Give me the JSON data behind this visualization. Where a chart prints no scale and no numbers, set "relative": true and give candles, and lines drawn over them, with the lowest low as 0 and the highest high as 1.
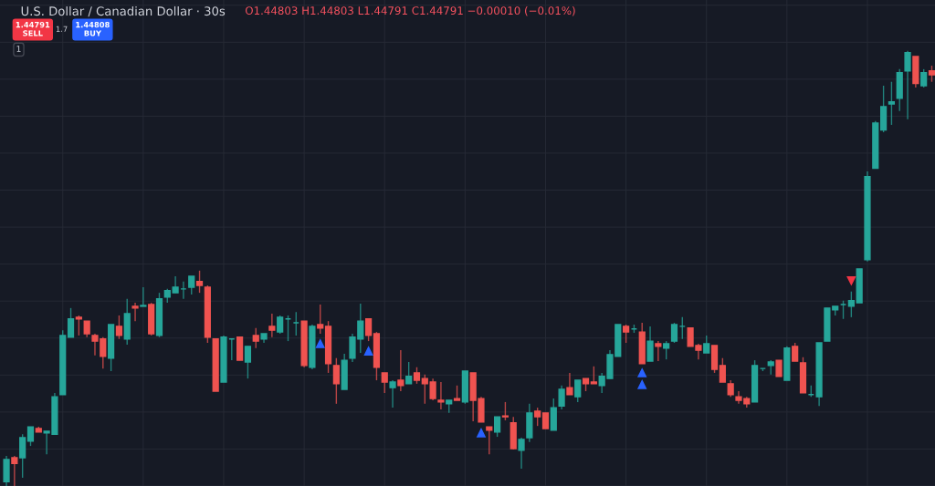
{
  "chart_data": {
    "type": "candlestick",
    "title": "U.S. Dollar / Canadian Dollar · 30s",
    "annotations": [
      "O1.44803 H1.44803 L1.44791 C1.44791 −0.00010 (−0.01%)",
      "1.44791\nSELL",
      "1.7",
      "1.44808\nBUY",
      "1"
    ],
    "relative": true,
    "grid": true,
    "categories": [
      null,
      null,
      null,
      null,
      null,
      null,
      null,
      null,
      null,
      null,
      null,
      null,
      null,
      null,
      null,
      null,
      null,
      null,
      null,
      null,
      null,
      null,
      null,
      null,
      null,
      null,
      null,
      null,
      null,
      null,
      null,
      null,
      null,
      null,
      null,
      null,
      null,
      null,
      null,
      null,
      null,
      null,
      null,
      null,
      null,
      null,
      null,
      null,
      null,
      null,
      null,
      null,
      null,
      null,
      null,
      null,
      null,
      null,
      null,
      null,
      null,
      null,
      null,
      null,
      null,
      null,
      null,
      null,
      null,
      null,
      null,
      null,
      null,
      null,
      null,
      null,
      null,
      null,
      null,
      null,
      null,
      null,
      null,
      null,
      null,
      null,
      null,
      null,
      null,
      null,
      null,
      null,
      null,
      null,
      null,
      null,
      null,
      null,
      null,
      null,
      null,
      null,
      null,
      null,
      null,
      null,
      null,
      null,
      null,
      null,
      null,
      null,
      null,
      null,
      null,
      null
    ],
    "ohlc": [
      [
        0.01,
        0.069,
        0,
        0.061
      ],
      [
        0.065,
        0.069,
        0,
        0.052
      ],
      [
        0.065,
        0.119,
        0.019,
        0.111
      ],
      [
        0.103,
        0.136,
        0.092,
        0.136
      ],
      [
        0.132,
        0.136,
        0.124,
        0.124
      ],
      [
        0.122,
        0.126,
        0.073,
        0.126
      ],
      [
        0.119,
        0.214,
        0.119,
        0.205
      ],
      [
        0.21,
        0.358,
        0.21,
        0.346
      ],
      [
        0.342,
        0.409,
        0.342,
        0.384
      ],
      [
        0.388,
        0.392,
        0.346,
        0.384
      ],
      [
        0.379,
        0.379,
        0.342,
        0.35
      ],
      [
        0.346,
        0.35,
        0.3,
        0.333
      ],
      [
        0.338,
        0.342,
        0.27,
        0.298
      ],
      [
        0.294,
        0.371,
        0.264,
        0.371
      ],
      [
        0.367,
        0.392,
        0.338,
        0.346
      ],
      [
        0.338,
        0.43,
        0.325,
        0.396
      ],
      [
        0.413,
        0.421,
        0.379,
        0.409
      ],
      [
        0.413,
        0.457,
        0.413,
        0.415
      ],
      [
        0.417,
        0.421,
        0.346,
        0.35
      ],
      [
        0.346,
        0.444,
        0.342,
        0.43
      ],
      [
        0.434,
        0.453,
        0.421,
        0.449
      ],
      [
        0.444,
        0.482,
        0.444,
        0.457
      ],
      [
        0.453,
        0.47,
        0.43,
        0.453
      ],
      [
        0.457,
        0.482,
        0.44,
        0.482
      ],
      [
        0.47,
        0.495,
        0.444,
        0.461
      ],
      [
        0.457,
        0.461,
        0.329,
        0.342
      ],
      [
        0.338,
        0.338,
        0.218,
        0.218
      ],
      [
        0.239,
        0.346,
        0.239,
        0.342
      ],
      [
        0.338,
        0.338,
        0.289,
        0.338
      ],
      [
        0.342,
        0.342,
        0.289,
        0.289
      ],
      [
        0.285,
        0.321,
        0.247,
        0.321
      ],
      [
        0.346,
        0.363,
        0.317,
        0.333
      ],
      [
        0.338,
        0.35,
        0.329,
        0.35
      ],
      [
        0.367,
        0.396,
        0.342,
        0.358
      ],
      [
        0.354,
        0.392,
        0.35,
        0.388
      ],
      [
        0.384,
        0.392,
        0.333,
        0.384
      ],
      [
        0.375,
        0.4,
        0.346,
        0.375
      ],
      [
        0.379,
        0.379,
        0.273,
        0.277
      ],
      [
        0.273,
        0.371,
        0.268,
        0.367
      ],
      [
        0.371,
        0.417,
        0.35,
        0.363
      ],
      [
        0.367,
        0.379,
        0.26,
        0.281
      ],
      [
        0.277,
        0.294,
        0.189,
        0.235
      ],
      [
        0.222,
        0.304,
        0.222,
        0.289
      ],
      [
        0.294,
        0.35,
        0.285,
        0.342
      ],
      [
        0.338,
        0.419,
        0.306,
        0.379
      ],
      [
        0.384,
        0.384,
        0.333,
        0.346
      ],
      [
        0.35,
        0.354,
        0.243,
        0.273
      ],
      [
        0.26,
        0.26,
        0.214,
        0.239
      ],
      [
        0.226,
        0.243,
        0.18,
        0.239
      ],
      [
        0.243,
        0.312,
        0.218,
        0.231
      ],
      [
        0.235,
        0.285,
        0.235,
        0.252
      ],
      [
        0.26,
        0.273,
        0.235,
        0.243
      ],
      [
        0.247,
        0.256,
        0.189,
        0.235
      ],
      [
        0.239,
        0.247,
        0.197,
        0.201
      ],
      [
        0.197,
        0.239,
        0.176,
        0.193
      ],
      [
        0.189,
        0.197,
        0.168,
        0.197
      ],
      [
        0.201,
        0.231,
        0.197,
        0.197
      ],
      [
        0.193,
        0.264,
        0.189,
        0.264
      ],
      [
        0.26,
        0.26,
        0.149,
        0.197
      ],
      [
        0.201,
        0.205,
        0.147,
        0.147
      ],
      [
        0.136,
        0.136,
        0.073,
        0.128
      ],
      [
        0.124,
        0.159,
        0.113,
        0.159
      ],
      [
        0.161,
        0.193,
        0.151,
        0.159
      ],
      [
        0.145,
        0.159,
        0.084,
        0.086
      ],
      [
        0.082,
        0.111,
        0.04,
        0.107
      ],
      [
        0.111,
        0.189,
        0.101,
        0.168
      ],
      [
        0.172,
        0.18,
        0.138,
        0.159
      ],
      [
        0.168,
        0.168,
        0.132,
        0.132
      ],
      [
        0.128,
        0.201,
        0.128,
        0.18
      ],
      [
        0.184,
        0.231,
        0.176,
        0.222
      ],
      [
        0.226,
        0.26,
        0.21,
        0.21
      ],
      [
        0.205,
        0.243,
        0.193,
        0.243
      ],
      [
        0.247,
        0.247,
        0.218,
        0.235
      ],
      [
        0.239,
        0.275,
        0.235,
        0.235
      ],
      [
        0.231,
        0.26,
        0.214,
        0.252
      ],
      [
        0.247,
        0.312,
        0.247,
        0.302
      ],
      [
        0.298,
        0.371,
        0.298,
        0.371
      ],
      [
        0.367,
        0.371,
        0.329,
        0.354
      ],
      [
        0.361,
        0.371,
        0.352,
        0.361
      ],
      [
        0.354,
        0.375,
        0.281,
        0.281
      ],
      [
        0.287,
        0.367,
        0.287,
        0.333
      ],
      [
        0.327,
        0.333,
        0.287,
        0.321
      ],
      [
        0.317,
        0.333,
        0.291,
        0.327
      ],
      [
        0.333,
        0.375,
        0.329,
        0.371
      ],
      [
        0.367,
        0.388,
        0.338,
        0.367
      ],
      [
        0.363,
        0.363,
        0.321,
        0.321
      ],
      [
        0.323,
        0.327,
        0.291,
        0.312
      ],
      [
        0.306,
        0.346,
        0.306,
        0.327
      ],
      [
        0.323,
        0.323,
        0.26,
        0.268
      ],
      [
        0.277,
        0.294,
        0.239,
        0.239
      ],
      [
        0.235,
        0.243,
        0.205,
        0.21
      ],
      [
        0.205,
        0.218,
        0.189,
        0.197
      ],
      [
        0.201,
        0.205,
        0.18,
        0.189
      ],
      [
        0.193,
        0.289,
        0.193,
        0.277
      ],
      [
        0.27,
        0.27,
        0.264,
        0.27
      ],
      [
        0.277,
        0.289,
        0.256,
        0.285
      ],
      [
        0.289,
        0.289,
        0.252,
        0.252
      ],
      [
        0.243,
        0.321,
        0.243,
        0.317
      ],
      [
        0.321,
        0.329,
        0.287,
        0.287
      ],
      [
        0.283,
        0.296,
        0.214,
        0.214
      ],
      [
        0.21,
        0.231,
        0.205,
        0.21
      ],
      [
        0.205,
        0.329,
        0.184,
        0.329
      ],
      [
        0.333,
        0.409,
        0.333,
        0.409
      ],
      [
        0.405,
        0.413,
        0.392,
        0.413
      ],
      [
        0.417,
        0.426,
        0.384,
        0.417
      ],
      [
        0.413,
        0.447,
        0.388,
        0.426
      ],
      [
        0.421,
        0.499,
        0.421,
        0.499
      ],
      [
        0.52,
        0.723,
        0.516,
        0.711
      ],
      [
        0.73,
        0.839,
        0.73,
        0.834
      ],
      [
        0.818,
        0.92,
        0.813,
        0.872
      ],
      [
        0.878,
        0.929,
        0.83,
        0.883
      ],
      [
        0.891,
        0.958,
        0.862,
        0.95
      ],
      [
        0.954,
        1,
        0.843,
        0.996
      ],
      [
        0.987,
        0.987,
        0.916,
        0.925
      ],
      [
        0.92,
        0.958,
        0.916,
        0.95
      ],
      [
        0.954,
        0.966,
        0.929,
        0.945
      ]
    ],
    "colors": [
      "#26a69a",
      "#ef5350",
      "#26a69a",
      "#26a69a",
      "#ef5350",
      "#26a69a",
      "#26a69a",
      "#26a69a",
      "#26a69a",
      "#ef5350",
      "#ef5350",
      "#ef5350",
      "#ef5350",
      "#26a69a",
      "#ef5350",
      "#26a69a",
      "#ef5350",
      "#26a69a",
      "#ef5350",
      "#26a69a",
      "#26a69a",
      "#26a69a",
      "#26a69a",
      "#26a69a",
      "#ef5350",
      "#ef5350",
      "#ef5350",
      "#26a69a",
      "#26a69a",
      "#ef5350",
      "#26a69a",
      "#ef5350",
      "#26a69a",
      "#ef5350",
      "#26a69a",
      "#26a69a",
      "#26a69a",
      "#ef5350",
      "#26a69a",
      "#ef5350",
      "#ef5350",
      "#ef5350",
      "#26a69a",
      "#26a69a",
      "#26a69a",
      "#ef5350",
      "#ef5350",
      "#ef5350",
      "#26a69a",
      "#ef5350",
      "#26a69a",
      "#ef5350",
      "#ef5350",
      "#ef5350",
      "#ef5350",
      "#26a69a",
      "#ef5350",
      "#26a69a",
      "#ef5350",
      "#ef5350",
      "#ef5350",
      "#26a69a",
      "#ef5350",
      "#ef5350",
      "#26a69a",
      "#26a69a",
      "#ef5350",
      "#ef5350",
      "#26a69a",
      "#26a69a",
      "#ef5350",
      "#26a69a",
      "#ef5350",
      "#ef5350",
      "#26a69a",
      "#26a69a",
      "#26a69a",
      "#ef5350",
      "#26a69a",
      "#ef5350",
      "#26a69a",
      "#ef5350",
      "#26a69a",
      "#26a69a",
      "#26a69a",
      "#ef5350",
      "#ef5350",
      "#26a69a",
      "#ef5350",
      "#ef5350",
      "#ef5350",
      "#ef5350",
      "#ef5350",
      "#26a69a",
      "#26a69a",
      "#26a69a",
      "#ef5350",
      "#26a69a",
      "#ef5350",
      "#ef5350",
      "#26a69a",
      "#26a69a",
      "#26a69a",
      "#26a69a",
      "#26a69a",
      "#26a69a",
      "#26a69a",
      "#26a69a",
      "#26a69a",
      "#26a69a",
      "#26a69a",
      "#26a69a",
      "#26a69a",
      "#ef5350",
      "#26a69a",
      "#ef5350"
    ],
    "series": [
      {
        "type": "scatter",
        "marker": "triangle",
        "color": "#2962ff",
        "values": [
          null,
          null,
          null,
          null,
          null,
          null,
          null,
          null,
          null,
          null,
          null,
          null,
          null,
          null,
          null,
          null,
          null,
          null,
          null,
          null,
          null,
          null,
          null,
          null,
          null,
          null,
          null,
          null,
          null,
          null,
          null,
          null,
          null,
          null,
          null,
          null,
          null,
          null,
          null,
          0.327,
          null,
          null,
          null,
          null,
          null,
          0.31,
          null,
          null,
          null,
          null,
          null,
          null,
          null,
          null,
          null,
          null,
          null,
          null,
          null,
          0.122,
          null,
          null,
          null,
          null,
          null,
          null,
          null,
          null,
          null,
          null,
          null,
          null,
          null,
          null,
          null,
          null,
          null,
          null,
          null,
          0.26,
          null,
          null,
          null,
          null,
          null,
          null,
          null,
          null,
          null,
          null,
          null,
          null,
          null,
          null,
          null,
          null,
          null,
          null,
          null,
          null,
          null,
          null,
          null,
          null,
          null,
          null,
          null,
          null,
          null,
          null,
          null,
          null,
          null,
          null,
          null,
          null
        ]
      },
      {
        "type": "scatter",
        "marker": "triangle",
        "color": "#2962ff",
        "values": [
          null,
          null,
          null,
          null,
          null,
          null,
          null,
          null,
          null,
          null,
          null,
          null,
          null,
          null,
          null,
          null,
          null,
          null,
          null,
          null,
          null,
          null,
          null,
          null,
          null,
          null,
          null,
          null,
          null,
          null,
          null,
          null,
          null,
          null,
          null,
          null,
          null,
          null,
          null,
          null,
          null,
          null,
          null,
          null,
          null,
          null,
          null,
          null,
          null,
          null,
          null,
          null,
          null,
          null,
          null,
          null,
          null,
          null,
          null,
          null,
          null,
          null,
          null,
          null,
          null,
          null,
          null,
          null,
          null,
          null,
          null,
          null,
          null,
          null,
          null,
          null,
          null,
          null,
          null,
          0.233,
          null,
          null,
          null,
          null,
          null,
          null,
          null,
          null,
          null,
          null,
          null,
          null,
          null,
          null,
          null,
          null,
          null,
          null,
          null,
          null,
          null,
          null,
          null,
          null,
          null,
          null,
          null,
          null,
          null,
          null,
          null,
          null,
          null,
          null,
          null,
          null
        ]
      },
      {
        "type": "scatter",
        "marker": "triangle",
        "color": "#f23645",
        "values": [
          null,
          null,
          null,
          null,
          null,
          null,
          null,
          null,
          null,
          null,
          null,
          null,
          null,
          null,
          null,
          null,
          null,
          null,
          null,
          null,
          null,
          null,
          null,
          null,
          null,
          null,
          null,
          null,
          null,
          null,
          null,
          null,
          null,
          null,
          null,
          null,
          null,
          null,
          null,
          null,
          null,
          null,
          null,
          null,
          null,
          null,
          null,
          null,
          null,
          null,
          null,
          null,
          null,
          null,
          null,
          null,
          null,
          null,
          null,
          null,
          null,
          null,
          null,
          null,
          null,
          null,
          null,
          null,
          null,
          null,
          null,
          null,
          null,
          null,
          null,
          null,
          null,
          null,
          null,
          null,
          null,
          null,
          null,
          null,
          null,
          null,
          null,
          null,
          null,
          null,
          null,
          null,
          null,
          null,
          null,
          null,
          null,
          null,
          null,
          null,
          null,
          null,
          null,
          null,
          null,
          0.472,
          null,
          null,
          null,
          null,
          null,
          null,
          null,
          null,
          null,
          null
        ]
      }
    ]
  }
}
